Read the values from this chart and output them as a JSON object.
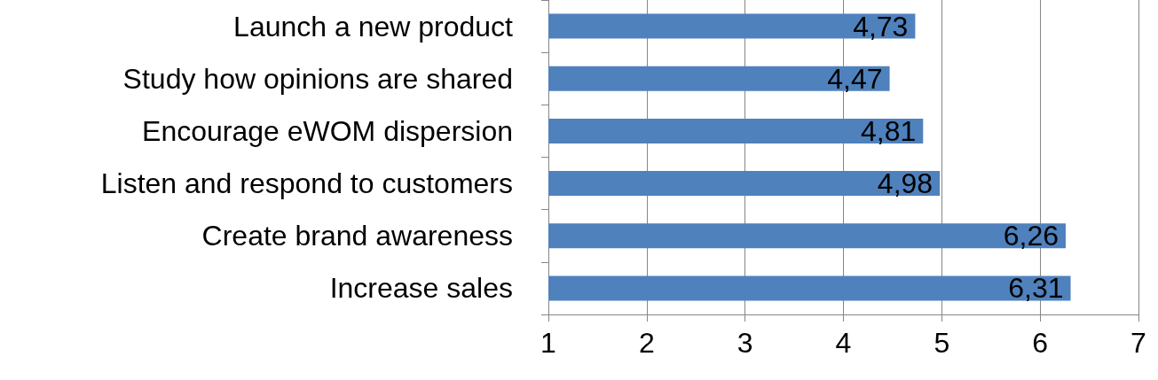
{
  "chart_data": {
    "type": "bar",
    "orientation": "horizontal",
    "categories": [
      "Launch a new product",
      "Study how opinions are shared",
      "Encourage eWOM dispersion",
      "Listen and respond to customers",
      "Create brand awareness",
      "Increase sales"
    ],
    "values": [
      4.73,
      4.47,
      4.81,
      4.98,
      6.26,
      6.31
    ],
    "value_labels": [
      "4,73",
      "4,47",
      "4,81",
      "4,98",
      "6,26",
      "6,31"
    ],
    "color": "#4f81bd",
    "xlim": [
      1,
      7
    ],
    "xticks": [
      1,
      2,
      3,
      4,
      5,
      6,
      7
    ],
    "grid": "x"
  }
}
